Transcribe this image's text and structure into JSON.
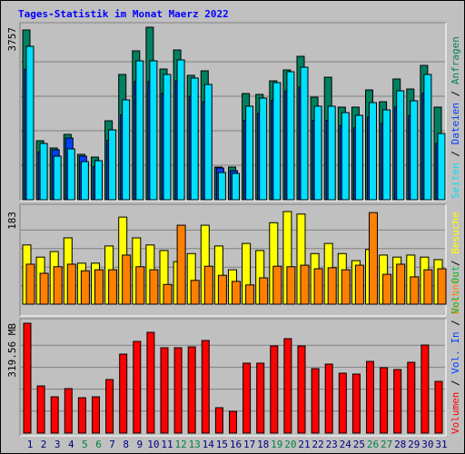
{
  "chart_data": [
    {
      "type": "bar",
      "title": "Tages-Statistik im Monat Maerz 2022",
      "categories": [
        "1",
        "2",
        "3",
        "4",
        "5",
        "6",
        "7",
        "8",
        "9",
        "10",
        "11",
        "12",
        "13",
        "14",
        "15",
        "16",
        "17",
        "18",
        "19",
        "20",
        "21",
        "22",
        "23",
        "24",
        "25",
        "26",
        "27",
        "28",
        "29",
        "30",
        "31"
      ],
      "category_colors": [
        "#000080",
        "#000080",
        "#000080",
        "#000080",
        "#008040",
        "#008040",
        "#000080",
        "#000080",
        "#000080",
        "#000080",
        "#000080",
        "#008040",
        "#008040",
        "#000080",
        "#000080",
        "#000080",
        "#000080",
        "#000080",
        "#008040",
        "#008040",
        "#000080",
        "#000080",
        "#000080",
        "#000080",
        "#000080",
        "#008040",
        "#008040",
        "#000080",
        "#000080",
        "#000080",
        "#000080"
      ],
      "ylim": [
        0,
        3757
      ],
      "yticks": [
        3757
      ],
      "series": [
        {
          "name": "Anfragen",
          "color": "#008060",
          "values": [
            3697,
            1285,
            1127,
            1424,
            989,
            929,
            1720,
            2729,
            3243,
            3757,
            2847,
            3262,
            2709,
            2808,
            712,
            712,
            2313,
            2294,
            2590,
            2827,
            3124,
            2234,
            2669,
            2017,
            2017,
            2392,
            2135,
            2630,
            2412,
            2926,
            2017
          ]
        },
        {
          "name": "Dateien",
          "color": "#0040ff",
          "values": [
            2841,
            1042,
            1087,
            1345,
            949,
            723,
            1294,
            1849,
            2571,
            2571,
            2320,
            2588,
            2253,
            2134,
            692,
            633,
            1731,
            1882,
            2168,
            2370,
            2454,
            1731,
            1731,
            1613,
            1563,
            1799,
            1663,
            2017,
            1832,
            2320,
            1227
          ]
        },
        {
          "name": "Seiten",
          "color": "#00e0ff",
          "values": [
            3342,
            1226,
            949,
            1107,
            830,
            850,
            1522,
            2175,
            3025,
            3025,
            2729,
            3045,
            2650,
            2511,
            593,
            573,
            2037,
            2214,
            2551,
            2788,
            2887,
            2037,
            2037,
            1898,
            1839,
            2116,
            1957,
            2373,
            2155,
            2729,
            1443
          ]
        }
      ]
    },
    {
      "type": "bar",
      "ylim": [
        0,
        183
      ],
      "yticks": [
        183
      ],
      "series": [
        {
          "name": "Besuche",
          "color": "#ffff00",
          "values": [
            117,
            93,
            104,
            131,
            81,
            81,
            115,
            172,
            131,
            117,
            106,
            84,
            100,
            156,
            115,
            68,
            120,
            106,
            161,
            183,
            178,
            100,
            120,
            100,
            86,
            108,
            97,
            93,
            97,
            93,
            88
          ]
        },
        {
          "name": "Rechner",
          "color": "#ff8000",
          "values": [
            79,
            61,
            74,
            79,
            66,
            68,
            68,
            97,
            74,
            68,
            39,
            156,
            47,
            75,
            57,
            45,
            38,
            52,
            75,
            74,
            77,
            70,
            72,
            68,
            77,
            181,
            59,
            79,
            54,
            68,
            70
          ]
        }
      ]
    },
    {
      "type": "bar",
      "ylim": [
        0,
        319.56
      ],
      "yticks": [
        {
          "value": 319.56,
          "label": "319.56 MB"
        }
      ],
      "series": [
        {
          "name": "Volumen",
          "color": "#ff0000",
          "values": [
            319.56,
            137.3,
            105.6,
            129.4,
            103.0,
            105.6,
            155.8,
            229.8,
            266.7,
            293.2,
            248.3,
            248.3,
            250.9,
            269.4,
            73.9,
            63.4,
            203.4,
            203.4,
            253.5,
            274.7,
            253.5,
            187.5,
            200.7,
            174.3,
            171.7,
            208.6,
            190.2,
            184.9,
            206.0,
            256.2,
            150.5
          ]
        }
      ],
      "extra_legend": [
        {
          "name": "Vol. In",
          "color": "#0040ff"
        },
        {
          "name": "Vol. Out",
          "color": "#00c040"
        }
      ]
    }
  ]
}
